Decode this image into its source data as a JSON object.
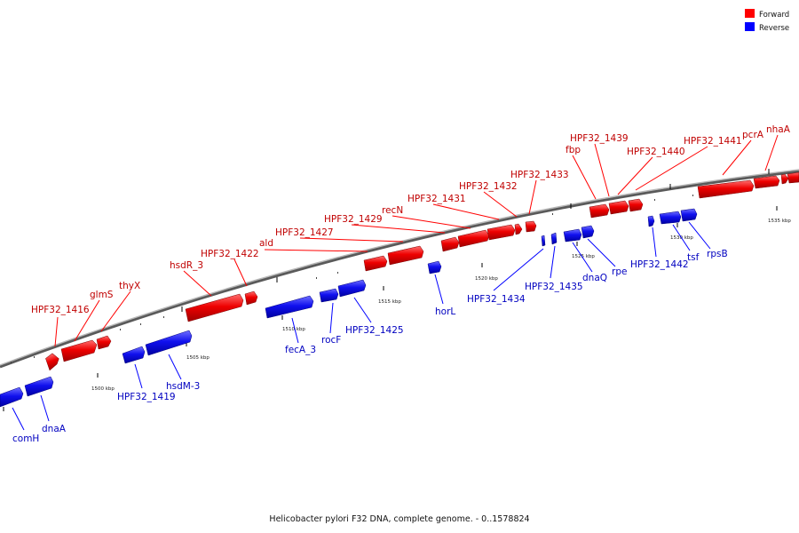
{
  "title": "Helicobacter pylori F32 DNA, complete genome. - 0..1578824",
  "legend": [
    {
      "label": "Forward",
      "color": "#ff0000"
    },
    {
      "label": "Reverse",
      "color": "#0000ff"
    }
  ],
  "colors": {
    "forward": "#ff0000",
    "reverse": "#0000ff",
    "backbone": "#8a8a8a"
  },
  "ticks": [
    "1500 kbp",
    "1505 kbp",
    "1510 kbp",
    "1515 kbp",
    "1520 kbp",
    "1525 kbp",
    "1530 kbp",
    "1535 kbp"
  ],
  "forward_genes": [
    "HPF32_1416",
    "glmS",
    "thyX",
    "hsdR_3",
    "HPF32_1422",
    "ald",
    "HPF32_1427",
    "HPF32_1429",
    "recN",
    "HPF32_1431",
    "HPF32_1432",
    "HPF32_1433",
    "fbp",
    "HPF32_1439",
    "HPF32_1440",
    "HPF32_1441",
    "pcrA",
    "nhaA"
  ],
  "reverse_genes": [
    "comH",
    "dnaA",
    "HPF32_1419",
    "hsdM-3",
    "fecA_3",
    "rocF",
    "HPF32_1425",
    "horL",
    "HPF32_1434",
    "HPF32_1435",
    "dnaQ",
    "rpe",
    "HPF32_1442",
    "tsf",
    "rpsB"
  ]
}
